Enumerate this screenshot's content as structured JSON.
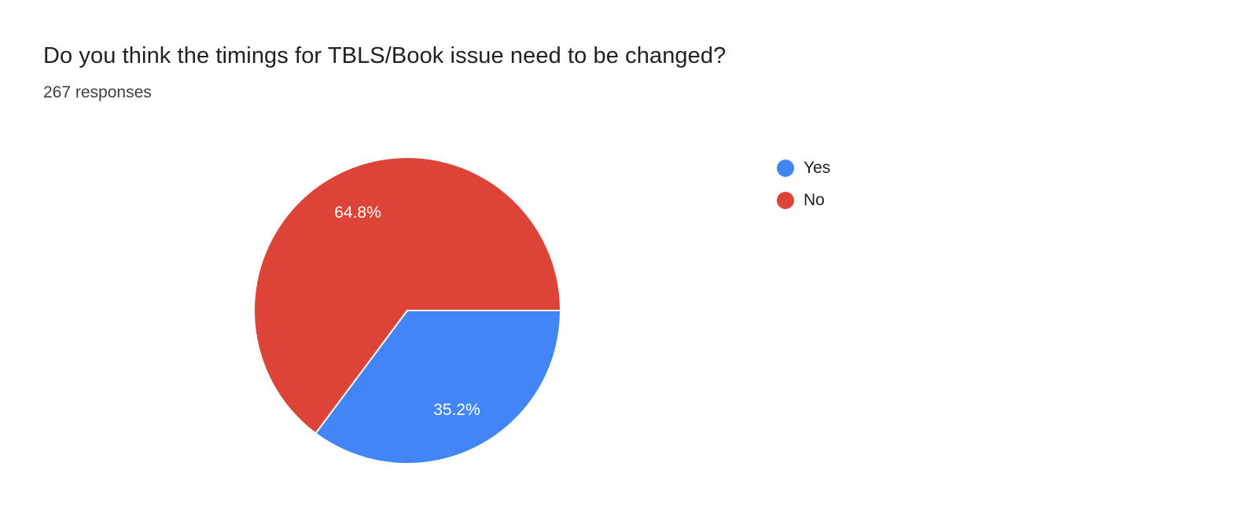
{
  "header": {
    "title": "Do you think the timings for TBLS/Book issue need to be changed?",
    "responses": "267 responses"
  },
  "chart_data": {
    "type": "pie",
    "title": "Do you think the timings for TBLS/Book issue need to be changed?",
    "subtitle": "267 responses",
    "total_responses": 267,
    "categories": [
      "Yes",
      "No"
    ],
    "values": [
      35.2,
      64.8
    ],
    "value_labels": [
      "35.2%",
      "64.8%"
    ],
    "colors": [
      "#4285f4",
      "#db4437"
    ],
    "slice_label_color": "#ffffff",
    "start_angle_deg_clockwise_from_12": 90,
    "legend_position": "right",
    "background": "#ffffff"
  }
}
